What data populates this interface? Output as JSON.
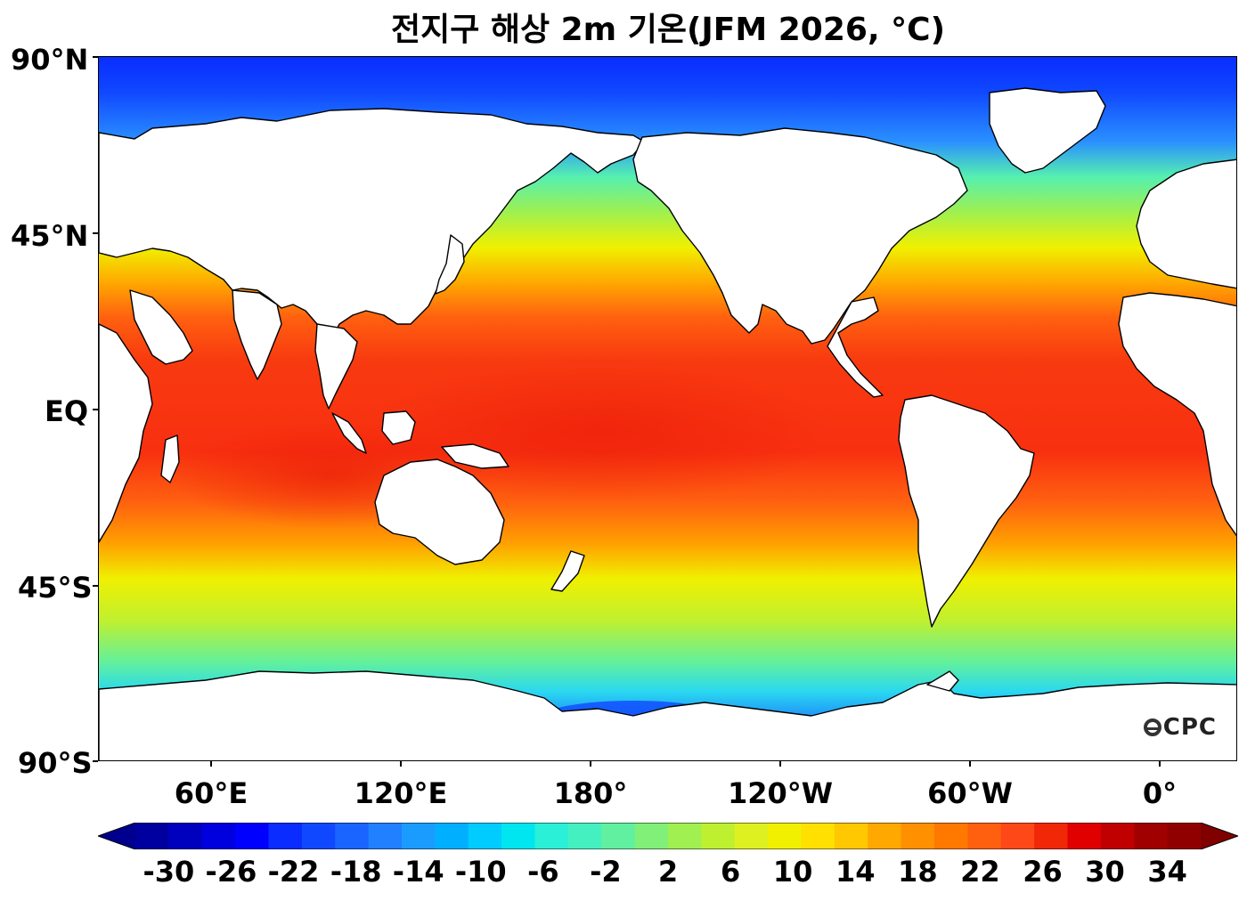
{
  "title": "전지구 해상 2m 기온(JFM 2026, °C)",
  "logo_text": "CPC",
  "lat_labels": [
    "90°N",
    "45°N",
    "EQ",
    "45°S",
    "90°S"
  ],
  "lon_labels": [
    "60°E",
    "120°E",
    "180°",
    "120°W",
    "60°W",
    "0°"
  ],
  "colorbar": {
    "labels": [
      "-30",
      "-26",
      "-22",
      "-18",
      "-14",
      "-10",
      "-6",
      "-2",
      "2",
      "6",
      "10",
      "14",
      "18",
      "22",
      "26",
      "30",
      "34"
    ],
    "min": -32,
    "max": 36,
    "step": 2,
    "colors": [
      "#00008f",
      "#00009f",
      "#0000bf",
      "#0000df",
      "#0000ff",
      "#0a2cff",
      "#1048ff",
      "#1a64ff",
      "#2080ff",
      "#1a9cff",
      "#00b0ff",
      "#00ccff",
      "#00e6f0",
      "#2af0d8",
      "#45f0c0",
      "#60f0a0",
      "#80f078",
      "#9ff050",
      "#bff030",
      "#dff020",
      "#f0f000",
      "#ffe000",
      "#ffc800",
      "#ffa800",
      "#ff9000",
      "#ff7800",
      "#ff6010",
      "#ff4818",
      "#f02808",
      "#e00000",
      "#c00000",
      "#a00000",
      "#900000",
      "#800000"
    ]
  }
}
